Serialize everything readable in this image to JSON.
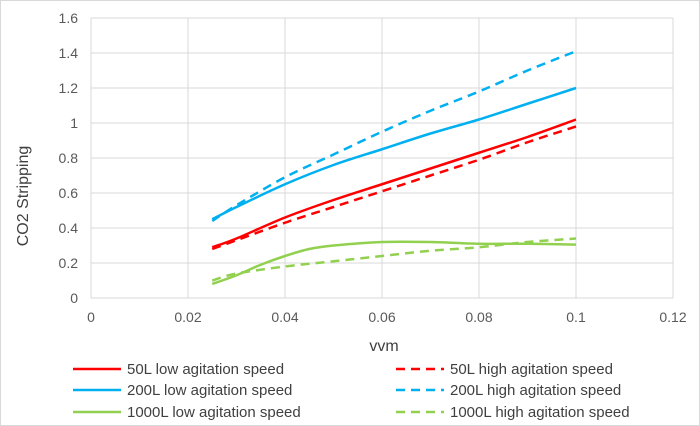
{
  "chart_data": {
    "type": "line",
    "title": "",
    "xlabel": "vvm",
    "ylabel": "CO2 Stripping",
    "xlim": [
      0,
      0.12
    ],
    "ylim": [
      0,
      1.6
    ],
    "x_ticks": [
      "0",
      "0.02",
      "0.04",
      "0.06",
      "0.08",
      "0.1",
      "0.12"
    ],
    "y_ticks": [
      "0",
      "0.2",
      "0.4",
      "0.6",
      "0.8",
      "1",
      "1.2",
      "1.4",
      "1.6"
    ],
    "grid": "vertical and horizontal",
    "legend_position": "bottom",
    "series": [
      {
        "name": "50L low agitation speed",
        "color": "#ff0000",
        "dash": "solid",
        "x": [
          0.025,
          0.03,
          0.04,
          0.05,
          0.06,
          0.07,
          0.08,
          0.09,
          0.1
        ],
        "y": [
          0.29,
          0.34,
          0.46,
          0.56,
          0.65,
          0.74,
          0.83,
          0.92,
          1.02
        ]
      },
      {
        "name": "50L high agitation speed",
        "color": "#ff0000",
        "dash": "dashed",
        "x": [
          0.025,
          0.03,
          0.04,
          0.05,
          0.06,
          0.07,
          0.08,
          0.09,
          0.1
        ],
        "y": [
          0.28,
          0.33,
          0.43,
          0.52,
          0.61,
          0.7,
          0.79,
          0.89,
          0.98
        ]
      },
      {
        "name": "200L low agitation speed",
        "color": "#00b0f0",
        "dash": "solid",
        "x": [
          0.025,
          0.03,
          0.04,
          0.05,
          0.06,
          0.07,
          0.08,
          0.09,
          0.1
        ],
        "y": [
          0.45,
          0.52,
          0.65,
          0.76,
          0.85,
          0.94,
          1.02,
          1.11,
          1.2
        ]
      },
      {
        "name": "200L high agitation speed",
        "color": "#00b0f0",
        "dash": "dashed",
        "x": [
          0.025,
          0.03,
          0.04,
          0.05,
          0.06,
          0.07,
          0.08,
          0.09,
          0.1
        ],
        "y": [
          0.44,
          0.53,
          0.69,
          0.82,
          0.95,
          1.07,
          1.18,
          1.3,
          1.41
        ]
      },
      {
        "name": "1000L low agitation speed",
        "color": "#92d050",
        "dash": "solid",
        "x": [
          0.025,
          0.03,
          0.035,
          0.04,
          0.045,
          0.05,
          0.06,
          0.07,
          0.08,
          0.09,
          0.1
        ],
        "y": [
          0.08,
          0.13,
          0.19,
          0.24,
          0.28,
          0.3,
          0.32,
          0.32,
          0.31,
          0.31,
          0.305
        ]
      },
      {
        "name": "1000L high agitation speed",
        "color": "#92d050",
        "dash": "dashed",
        "x": [
          0.025,
          0.03,
          0.04,
          0.05,
          0.06,
          0.07,
          0.08,
          0.09,
          0.1
        ],
        "y": [
          0.1,
          0.14,
          0.18,
          0.21,
          0.24,
          0.27,
          0.29,
          0.32,
          0.34
        ]
      }
    ]
  }
}
